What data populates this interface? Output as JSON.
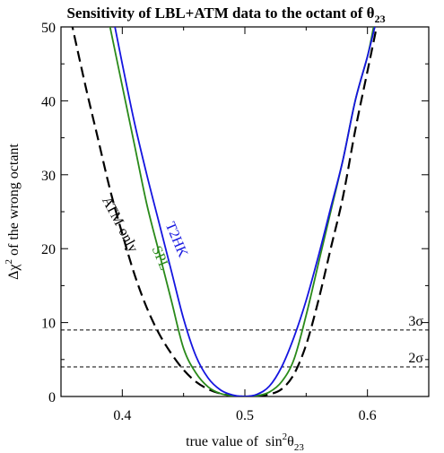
{
  "chart_data": {
    "type": "line",
    "title": "Sensitivity of LBL+ATM data to the octant of θ",
    "title_subscript": "23",
    "xlabel": "true value of  sin",
    "xlabel_superscript": "2",
    "xlabel_tail": "θ",
    "xlabel_subscript": "23",
    "ylabel": "Δχ",
    "ylabel_superscript": "2",
    "ylabel_tail": " of the wrong octant",
    "xlim": [
      0.35,
      0.65
    ],
    "ylim": [
      0,
      50
    ],
    "xticks": [
      0.4,
      0.5,
      0.6
    ],
    "xtick_labels": [
      "0.4",
      "0.5",
      "0.6"
    ],
    "yticks": [
      0,
      10,
      20,
      30,
      40,
      50
    ],
    "ytick_labels": [
      "0",
      "10",
      "20",
      "30",
      "40",
      "50"
    ],
    "grid": false,
    "reference_lines": [
      {
        "y": 9,
        "label": "3σ"
      },
      {
        "y": 4,
        "label": "2σ"
      }
    ],
    "series": [
      {
        "name": "ATM-only",
        "color": "#000000",
        "dash": "dashed",
        "x": [
          0.358,
          0.37,
          0.38,
          0.39,
          0.4,
          0.41,
          0.42,
          0.43,
          0.44,
          0.45,
          0.46,
          0.47,
          0.48,
          0.49,
          0.5,
          0.51,
          0.52,
          0.53,
          0.54,
          0.55,
          0.56,
          0.57,
          0.58,
          0.59,
          0.6,
          0.605,
          0.61
        ],
        "y": [
          51,
          42,
          35,
          28,
          22,
          16.5,
          12,
          8.5,
          5.8,
          3.6,
          2.0,
          1.0,
          0.4,
          0.1,
          0.0,
          0.1,
          0.3,
          1.0,
          3.0,
          7.0,
          13,
          20,
          27,
          36,
          44,
          48,
          52
        ]
      },
      {
        "name": "SPL",
        "color": "#2a8a1a",
        "dash": "solid",
        "x": [
          0.39,
          0.4,
          0.41,
          0.42,
          0.43,
          0.44,
          0.45,
          0.46,
          0.47,
          0.48,
          0.49,
          0.5,
          0.51,
          0.52,
          0.53,
          0.54,
          0.55,
          0.56,
          0.57,
          0.58,
          0.59,
          0.6,
          0.605
        ],
        "y": [
          50,
          42,
          34,
          26,
          19.5,
          13,
          6.5,
          3.2,
          1.3,
          0.4,
          0.1,
          0.0,
          0.1,
          0.6,
          2.0,
          5.0,
          11,
          18,
          25,
          32,
          40,
          46,
          50
        ]
      },
      {
        "name": "T2HK",
        "color": "#1515e0",
        "dash": "solid",
        "x": [
          0.394,
          0.4,
          0.41,
          0.42,
          0.43,
          0.44,
          0.45,
          0.46,
          0.47,
          0.48,
          0.49,
          0.5,
          0.51,
          0.52,
          0.53,
          0.54,
          0.55,
          0.56,
          0.57,
          0.58,
          0.59,
          0.6,
          0.606
        ],
        "y": [
          50,
          45,
          37,
          30,
          23.5,
          17,
          10.5,
          5.5,
          2.5,
          0.9,
          0.2,
          0.0,
          0.3,
          1.4,
          4.0,
          8.0,
          13,
          19,
          25.5,
          32,
          40,
          46,
          50
        ]
      }
    ],
    "curve_labels": [
      {
        "text": "ATM-only",
        "series": "ATM-only"
      },
      {
        "text": "SPL",
        "series": "SPL"
      },
      {
        "text": "T2HK",
        "series": "T2HK"
      }
    ]
  }
}
